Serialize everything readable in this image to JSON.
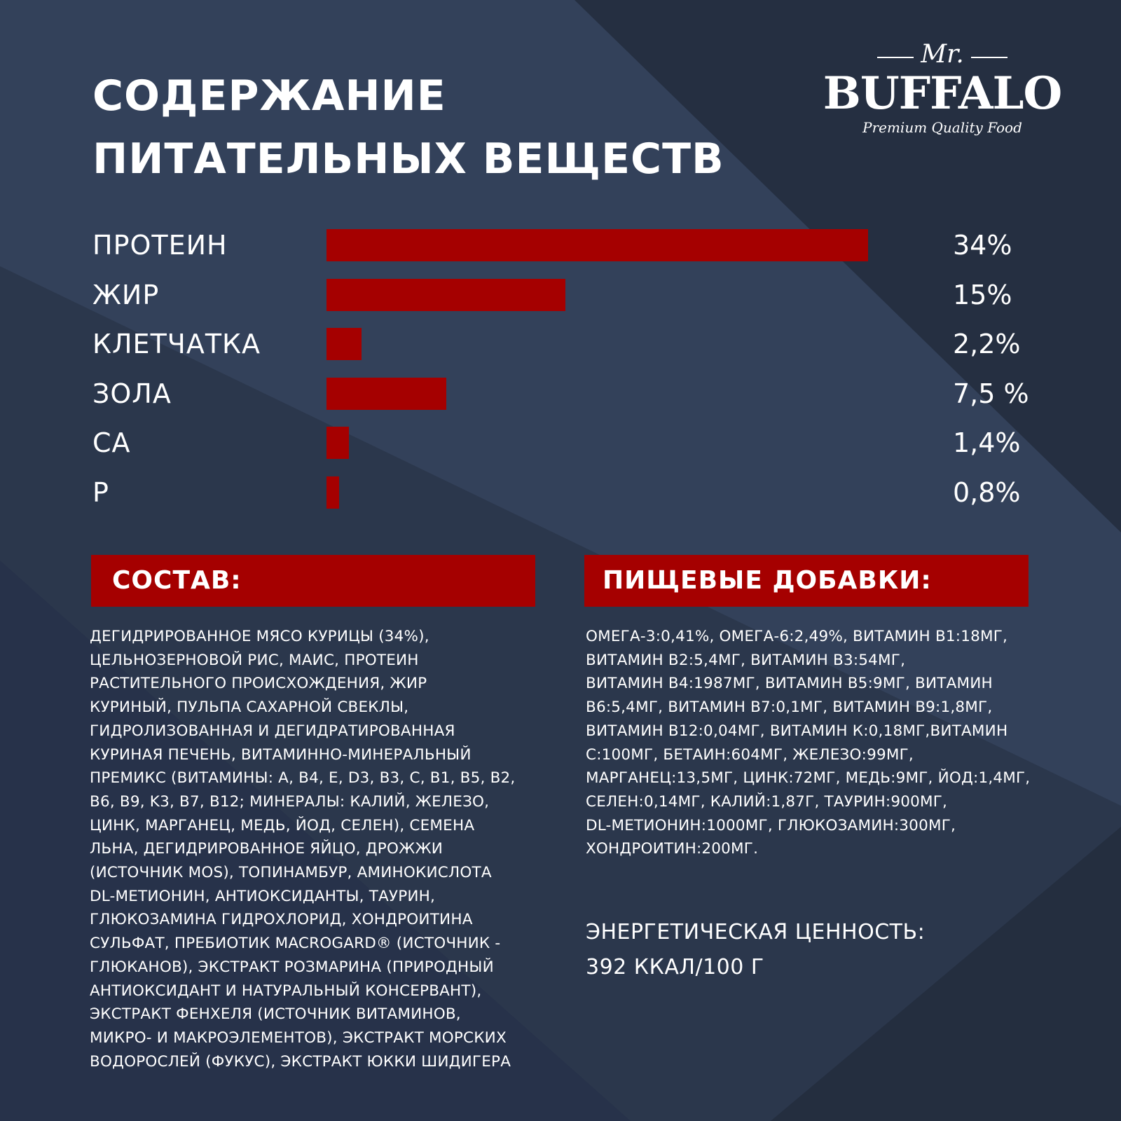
{
  "title": {
    "line1": "СОДЕРЖАНИЕ",
    "line2": "ПИТАТЕЛЬНЫХ ВЕЩЕСТВ"
  },
  "logo": {
    "mr": "Mr.",
    "name": "BUFFALO",
    "tagline": "Premium Quality Food"
  },
  "chart_data": {
    "type": "bar",
    "orientation": "horizontal",
    "title": "СОДЕРЖАНИЕ ПИТАТЕЛЬНЫХ ВЕЩЕСТВ",
    "categories": [
      "ПРОТЕИН",
      "ЖИР",
      "КЛЕТЧАТКА",
      "ЗОЛА",
      "CA",
      "P"
    ],
    "values": [
      34,
      15,
      2.2,
      7.5,
      1.4,
      0.8
    ],
    "value_labels": [
      "34%",
      "15%",
      "2,2%",
      "7,5 %",
      "1,4%",
      "0,8%"
    ],
    "xlim": [
      0,
      34
    ],
    "bar_color": "#a50000",
    "grid": false
  },
  "composition": {
    "heading": "СОСТАВ:",
    "text": "ДЕГИДРИРОВАННОЕ МЯСО КУРИЦЫ (34%),\nЦЕЛЬНОЗЕРНОВОЙ РИС, МАИС, ПРОТЕИН\nРАСТИТЕЛЬНОГО ПРОИСХОЖДЕНИЯ, ЖИР\nКУРИНЫЙ, ПУЛЬПА САХАРНОЙ СВЕКЛЫ,\nГИДРОЛИЗОВАННАЯ И ДЕГИДРАТИРОВАННАЯ\nКУРИНАЯ ПЕЧЕНЬ, ВИТАМИННО-МИНЕРАЛЬНЫЙ\nПРЕМИКС (ВИТАМИНЫ: A, B4, E, D3, B3, C, B1, B5, B2,\nB6, B9, K3, B7, B12; МИНЕРАЛЫ: КАЛИЙ, ЖЕЛЕЗО,\nЦИНК, МАРГАНЕЦ, МЕДЬ, ЙОД, СЕЛЕН), СЕМЕНА\nЛЬНА, ДЕГИДРИРОВАННОЕ ЯЙЦО, ДРОЖЖИ\n(ИСТОЧНИК MOS), ТОПИНАМБУР, АМИНОКИСЛОТА\nDL-МЕТИОНИН, АНТИОКСИДАНТЫ, ТАУРИН,\nГЛЮКОЗАМИНА ГИДРОХЛОРИД, ХОНДРОИТИНА\nСУЛЬФАТ, ПРЕБИОТИК MACROGARD® (ИСТОЧНИК -\nГЛЮКАНОВ), ЭКСТРАКТ РОЗМАРИНА (ПРИРОДНЫЙ\nАНТИОКСИДАНТ И НАТУРАЛЬНЫЙ КОНСЕРВАНТ),\nЭКСТРАКТ ФЕНХЕЛЯ (ИСТОЧНИК ВИТАМИНОВ,\nМИКРО- И МАКРОЭЛЕМЕНТОВ), ЭКСТРАКТ МОРСКИХ\nВОДОРОСЛЕЙ (ФУКУС), ЭКСТРАКТ ЮККИ ШИДИГЕРА"
  },
  "additives": {
    "heading": "ПИЩЕВЫЕ ДОБАВКИ:",
    "text": "ОМЕГА-3:0,41%, ОМЕГА-6:2,49%, ВИТАМИН B1:18МГ,\nВИТАМИН B2:5,4МГ, ВИТАМИН B3:54МГ,\nВИТАМИН B4:1987МГ, ВИТАМИН B5:9МГ, ВИТАМИН\nB6:5,4МГ, ВИТАМИН B7:0,1МГ, ВИТАМИН B9:1,8МГ,\nВИТАМИН B12:0,04МГ, ВИТАМИН К:0,18МГ,ВИТАМИН\nС:100МГ, БЕТАИН:604МГ, ЖЕЛЕЗО:99МГ,\nМАРГАНЕЦ:13,5МГ, ЦИНК:72МГ, МЕДЬ:9МГ, ЙОД:1,4МГ,\nСЕЛЕН:0,14МГ, КАЛИЙ:1,87Г, ТАУРИН:900МГ,\nDL-МЕТИОНИН:1000МГ, ГЛЮКОЗАМИН:300МГ,\nХОНДРОИТИН:200МГ."
  },
  "energy": {
    "label": "ЭНЕРГЕТИЧЕСКАЯ ЦЕННОСТЬ:",
    "value": "392 ККАЛ/100 Г"
  },
  "colors": {
    "background": "#2b374c",
    "background_dark": "#242e3f",
    "background_light": "#33415a",
    "accent": "#a50000",
    "text": "#ffffff"
  }
}
